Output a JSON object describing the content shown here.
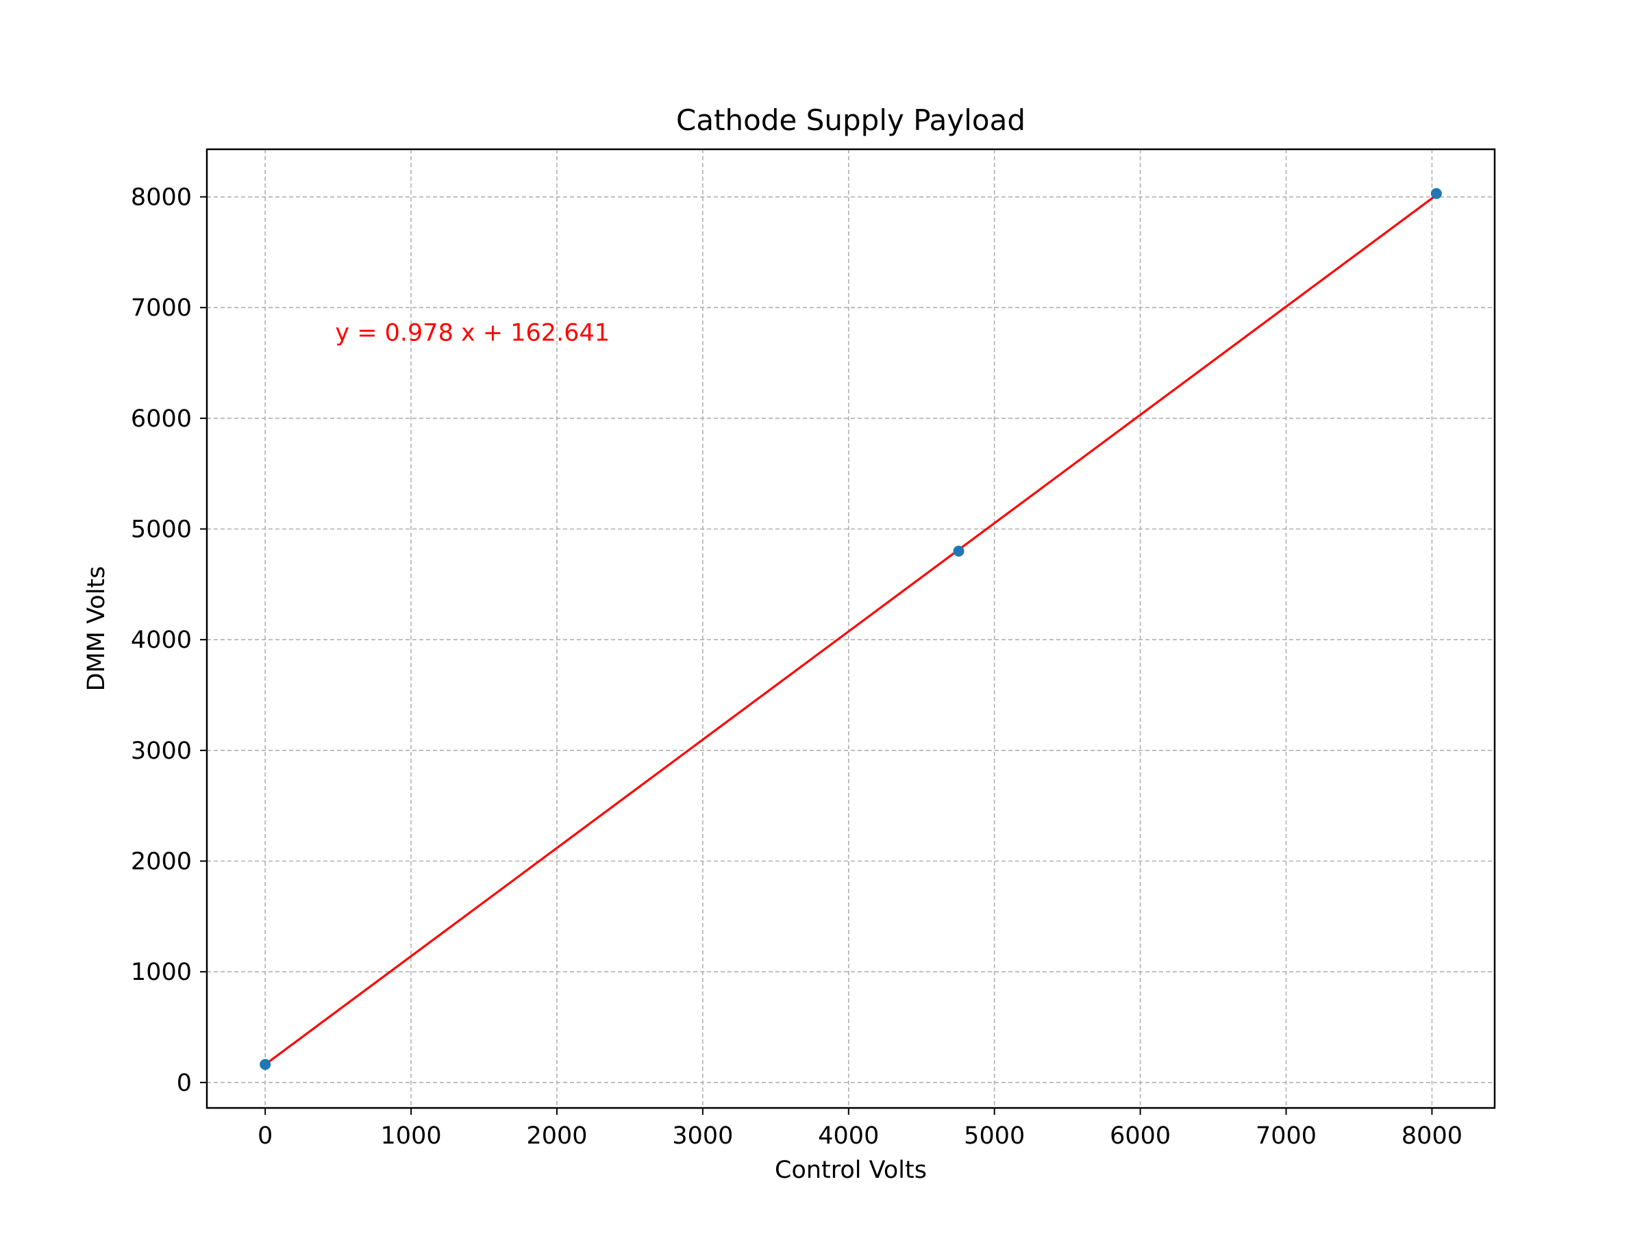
{
  "chart_data": {
    "type": "scatter",
    "title": "Cathode Supply Payload",
    "xlabel": "Control Volts",
    "ylabel": "DMM Volts",
    "xlim": [
      -400,
      8430
    ],
    "ylim": [
      -230,
      8430
    ],
    "xticks": [
      0,
      1000,
      2000,
      3000,
      4000,
      5000,
      6000,
      7000,
      8000
    ],
    "yticks": [
      0,
      1000,
      2000,
      3000,
      4000,
      5000,
      6000,
      7000,
      8000
    ],
    "grid": true,
    "points": [
      {
        "x": 0,
        "y": 163
      },
      {
        "x": 4755,
        "y": 4800
      },
      {
        "x": 8030,
        "y": 8030
      }
    ],
    "fit_line": {
      "slope": 0.978,
      "intercept": 162.641,
      "x_range": [
        0,
        8030
      ]
    },
    "annotation": {
      "text": "y = 0.978 x + 162.641",
      "x": 480,
      "y": 6700
    },
    "colors": {
      "points": "#1f77b4",
      "fit_line": "#ff0000",
      "annotation": "#ff0000",
      "grid": "#b0b0b0",
      "axes": "#000000"
    }
  }
}
